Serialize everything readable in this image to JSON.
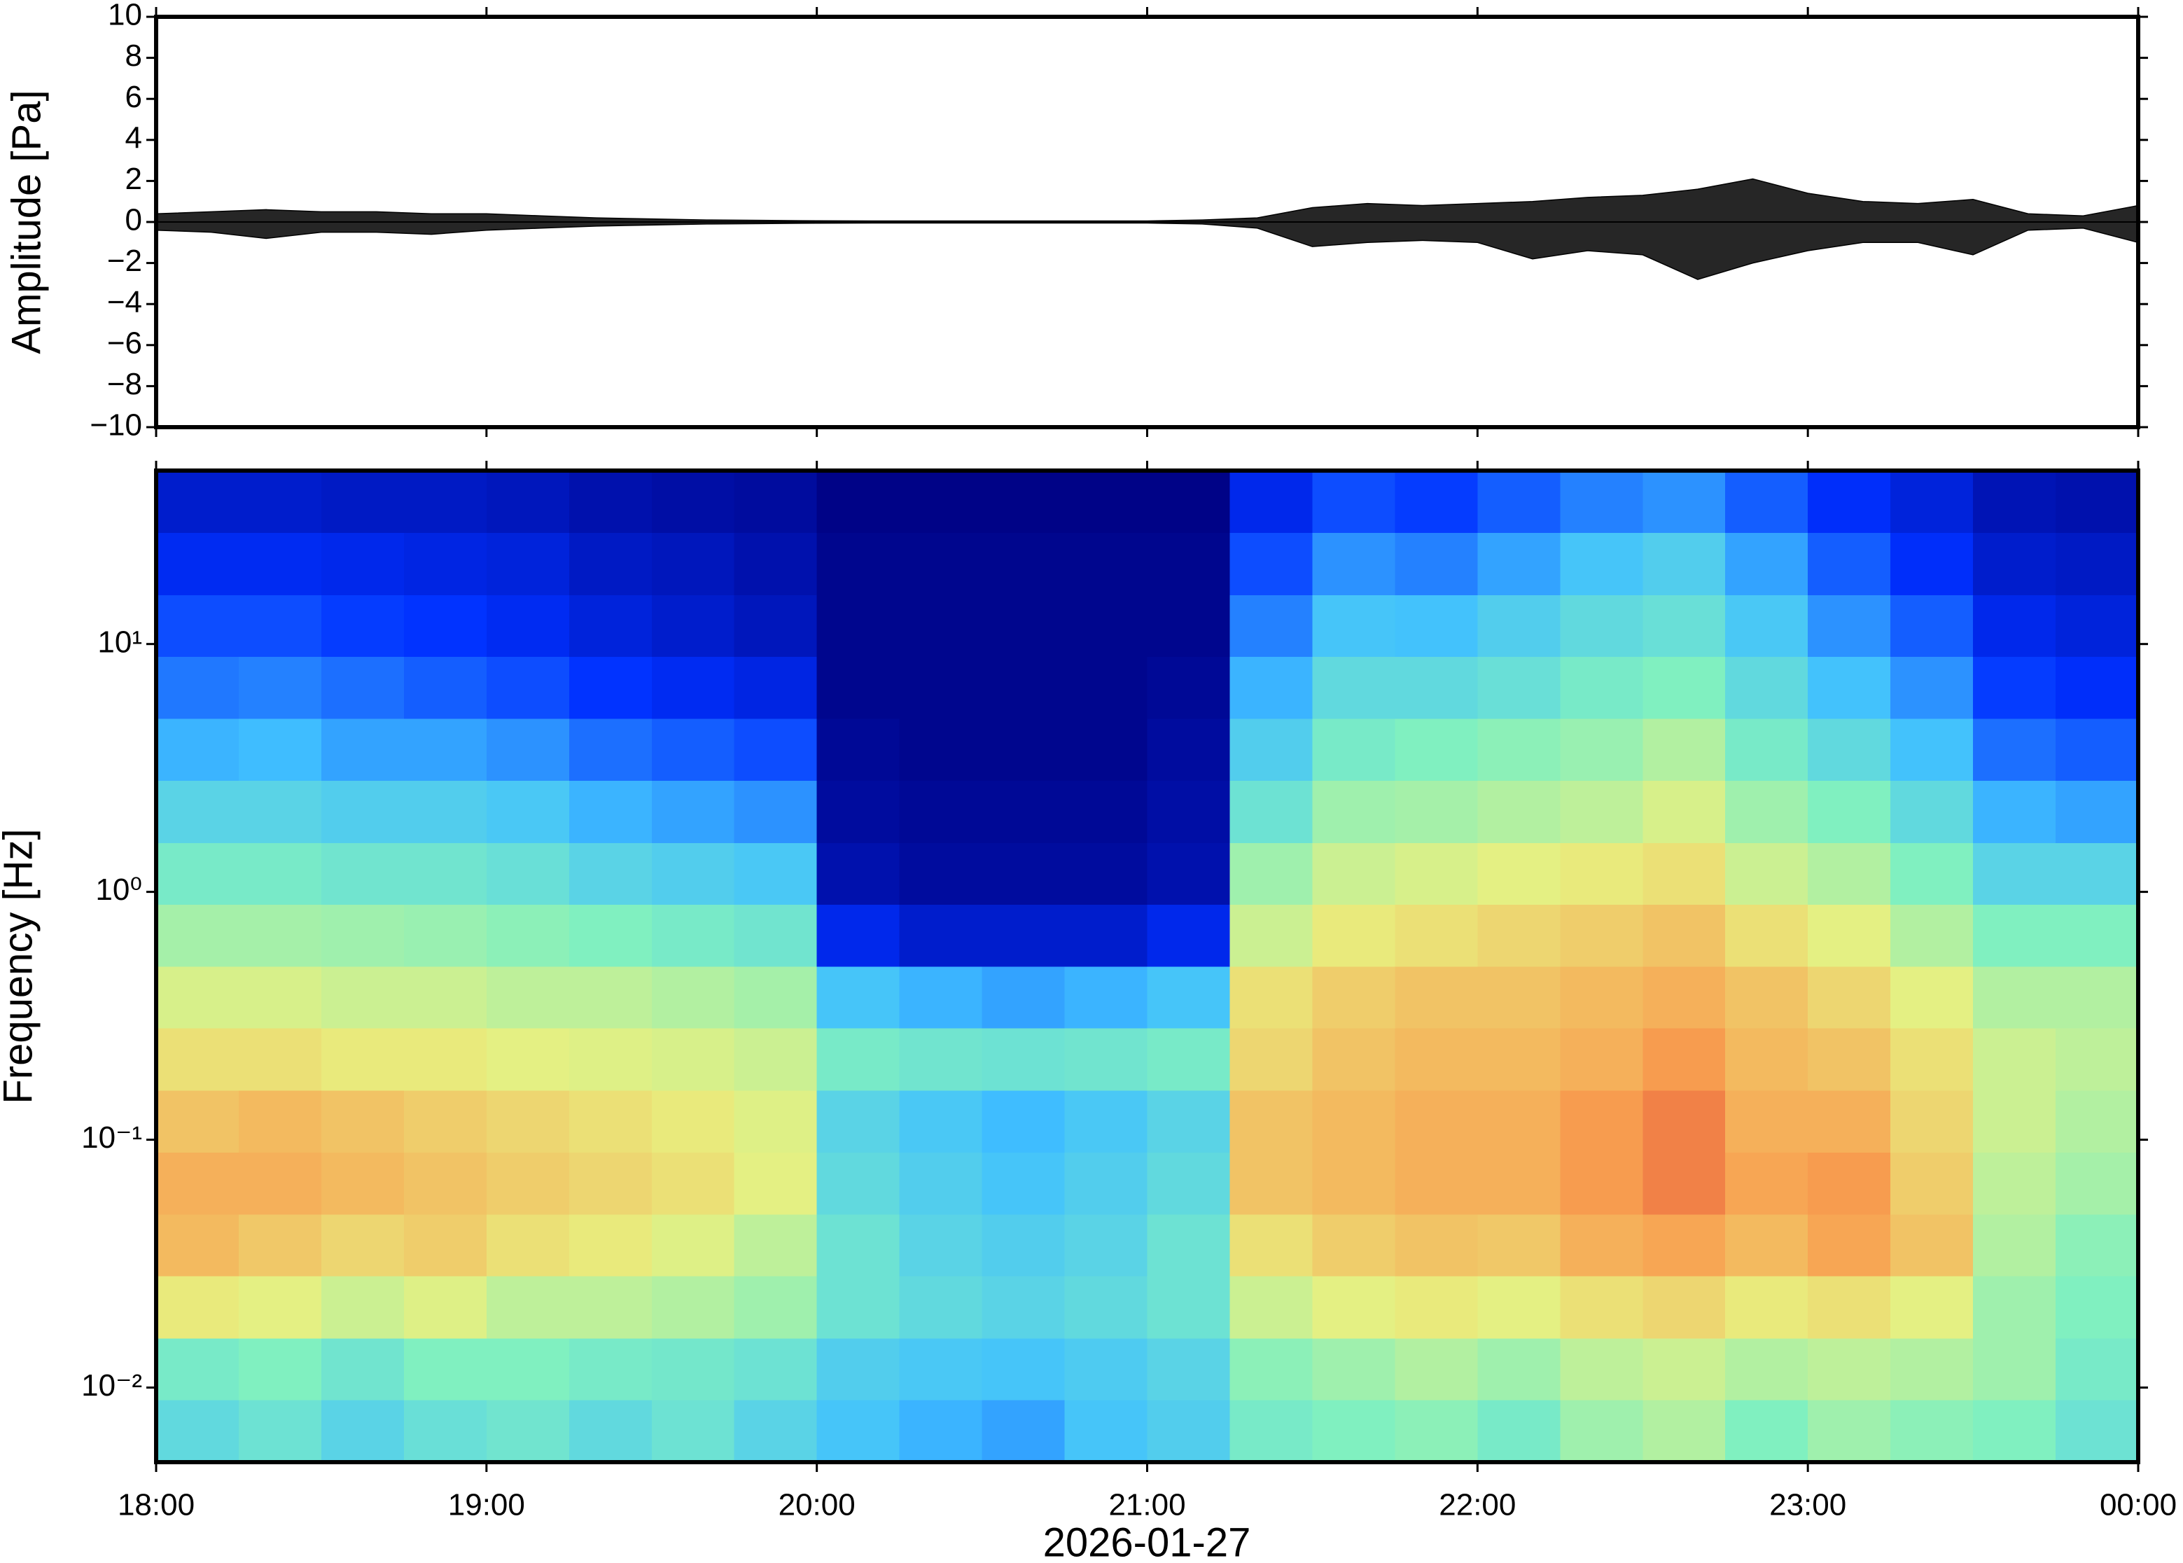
{
  "chart_data": [
    {
      "type": "waveform",
      "ylabel": "Amplitude [Pa]",
      "color": "#000000",
      "xlim": [
        0,
        360
      ],
      "ylim": [
        -10,
        10
      ],
      "yticks": [
        {
          "value": -10,
          "label": "−10"
        },
        {
          "value": -8,
          "label": "−8"
        },
        {
          "value": -6,
          "label": "−6"
        },
        {
          "value": -4,
          "label": "−4"
        },
        {
          "value": -2,
          "label": "−2"
        },
        0,
        2,
        4,
        6,
        8,
        10
      ],
      "x": [
        0,
        10,
        20,
        30,
        40,
        50,
        60,
        70,
        80,
        90,
        100,
        110,
        120,
        130,
        140,
        150,
        160,
        170,
        180,
        190,
        200,
        210,
        220,
        230,
        240,
        250,
        260,
        270,
        280,
        290,
        300,
        310,
        320,
        330,
        340,
        350,
        360
      ],
      "upper": [
        0.4,
        0.5,
        0.6,
        0.5,
        0.5,
        0.4,
        0.4,
        0.3,
        0.2,
        0.15,
        0.1,
        0.08,
        0.06,
        0.05,
        0.05,
        0.05,
        0.05,
        0.05,
        0.05,
        0.1,
        0.2,
        0.7,
        0.9,
        0.8,
        0.9,
        1.0,
        1.2,
        1.3,
        1.6,
        2.1,
        1.4,
        1.0,
        0.9,
        1.1,
        0.4,
        0.3,
        0.8
      ],
      "lower": [
        -0.4,
        -0.5,
        -0.8,
        -0.5,
        -0.5,
        -0.6,
        -0.4,
        -0.3,
        -0.2,
        -0.15,
        -0.1,
        -0.08,
        -0.06,
        -0.05,
        -0.05,
        -0.05,
        -0.05,
        -0.05,
        -0.05,
        -0.1,
        -0.3,
        -1.2,
        -1.0,
        -0.9,
        -1.0,
        -1.8,
        -1.4,
        -1.6,
        -2.8,
        -2.0,
        -1.4,
        -1.0,
        -1.0,
        -1.6,
        -0.4,
        -0.3,
        -1.0
      ]
    },
    {
      "type": "heatmap",
      "ylabel": "Frequency [Hz]",
      "xlabel": "2026-01-27",
      "log_y": true,
      "xlim": [
        0,
        360
      ],
      "ylim": [
        0.005,
        50.1
      ],
      "xticks": [
        {
          "value": 0,
          "label": "18:00"
        },
        {
          "value": 60,
          "label": "19:00"
        },
        {
          "value": 120,
          "label": "20:00"
        },
        {
          "value": 180,
          "label": "21:00"
        },
        {
          "value": 240,
          "label": "22:00"
        },
        {
          "value": 300,
          "label": "23:00"
        },
        {
          "value": 360,
          "label": "00:00"
        }
      ],
      "yticks": [
        {
          "value": 0.01,
          "label": "10⁻²"
        },
        {
          "value": 0.1,
          "label": "10⁻¹"
        },
        {
          "value": 1,
          "label": "10⁰"
        },
        {
          "value": 10,
          "label": "10¹"
        }
      ],
      "colormap": [
        "#00007f",
        "#0030ff",
        "#40c0ff",
        "#80f0c0",
        "#e8f080",
        "#f8a050",
        "#e03030"
      ],
      "x_edges": [
        0,
        15,
        30,
        45,
        60,
        75,
        90,
        105,
        120,
        135,
        150,
        165,
        180,
        195,
        210,
        225,
        240,
        255,
        270,
        285,
        300,
        315,
        330,
        345,
        360
      ],
      "y_edges": [
        0.005,
        0.00891,
        0.0158,
        0.0282,
        0.0501,
        0.0891,
        0.158,
        0.282,
        0.501,
        0.891,
        1.58,
        2.82,
        5.01,
        8.91,
        15.8,
        28.2,
        50.1
      ],
      "values": [
        [
          0.42,
          0.45,
          0.4,
          0.44,
          0.46,
          0.42,
          0.45,
          0.4,
          0.35,
          0.32,
          0.3,
          0.35,
          0.38,
          0.48,
          0.5,
          0.52,
          0.48,
          0.55,
          0.58,
          0.5,
          0.55,
          0.52,
          0.5,
          0.45
        ],
        [
          0.48,
          0.5,
          0.46,
          0.5,
          0.5,
          0.48,
          0.47,
          0.45,
          0.38,
          0.36,
          0.35,
          0.37,
          0.4,
          0.52,
          0.55,
          0.58,
          0.55,
          0.6,
          0.62,
          0.58,
          0.6,
          0.58,
          0.55,
          0.48
        ],
        [
          0.68,
          0.66,
          0.62,
          0.65,
          0.6,
          0.6,
          0.58,
          0.55,
          0.45,
          0.42,
          0.4,
          0.42,
          0.45,
          0.62,
          0.66,
          0.68,
          0.66,
          0.7,
          0.72,
          0.68,
          0.7,
          0.66,
          0.55,
          0.5
        ],
        [
          0.78,
          0.75,
          0.72,
          0.74,
          0.7,
          0.68,
          0.65,
          0.6,
          0.45,
          0.4,
          0.38,
          0.4,
          0.45,
          0.7,
          0.74,
          0.76,
          0.75,
          0.8,
          0.82,
          0.78,
          0.82,
          0.76,
          0.58,
          0.52
        ],
        [
          0.8,
          0.8,
          0.78,
          0.76,
          0.74,
          0.72,
          0.7,
          0.66,
          0.42,
          0.38,
          0.35,
          0.38,
          0.42,
          0.76,
          0.78,
          0.8,
          0.8,
          0.84,
          0.88,
          0.82,
          0.84,
          0.74,
          0.6,
          0.56
        ],
        [
          0.76,
          0.78,
          0.76,
          0.74,
          0.72,
          0.7,
          0.68,
          0.65,
          0.4,
          0.36,
          0.33,
          0.36,
          0.4,
          0.76,
          0.78,
          0.8,
          0.8,
          0.84,
          0.88,
          0.8,
          0.8,
          0.72,
          0.62,
          0.58
        ],
        [
          0.7,
          0.7,
          0.68,
          0.68,
          0.66,
          0.65,
          0.64,
          0.62,
          0.48,
          0.46,
          0.45,
          0.46,
          0.48,
          0.72,
          0.76,
          0.78,
          0.78,
          0.8,
          0.84,
          0.78,
          0.76,
          0.7,
          0.62,
          0.6
        ],
        [
          0.64,
          0.64,
          0.62,
          0.62,
          0.6,
          0.6,
          0.58,
          0.56,
          0.35,
          0.32,
          0.3,
          0.32,
          0.35,
          0.7,
          0.74,
          0.76,
          0.76,
          0.78,
          0.8,
          0.76,
          0.72,
          0.66,
          0.58,
          0.58
        ],
        [
          0.56,
          0.56,
          0.55,
          0.54,
          0.52,
          0.5,
          0.48,
          0.46,
          0.14,
          0.1,
          0.1,
          0.1,
          0.14,
          0.62,
          0.68,
          0.7,
          0.72,
          0.74,
          0.76,
          0.7,
          0.66,
          0.58,
          0.5,
          0.5
        ],
        [
          0.48,
          0.48,
          0.46,
          0.46,
          0.44,
          0.4,
          0.38,
          0.36,
          0.06,
          0.04,
          0.04,
          0.04,
          0.06,
          0.55,
          0.62,
          0.64,
          0.66,
          0.68,
          0.7,
          0.62,
          0.58,
          0.5,
          0.4,
          0.4
        ],
        [
          0.4,
          0.4,
          0.38,
          0.38,
          0.36,
          0.32,
          0.3,
          0.28,
          0.04,
          0.03,
          0.03,
          0.03,
          0.05,
          0.45,
          0.55,
          0.56,
          0.58,
          0.6,
          0.64,
          0.55,
          0.5,
          0.42,
          0.32,
          0.3
        ],
        [
          0.32,
          0.33,
          0.3,
          0.3,
          0.28,
          0.24,
          0.22,
          0.2,
          0.03,
          0.02,
          0.02,
          0.02,
          0.04,
          0.38,
          0.48,
          0.5,
          0.52,
          0.54,
          0.58,
          0.48,
          0.42,
          0.34,
          0.24,
          0.22
        ],
        [
          0.25,
          0.26,
          0.24,
          0.22,
          0.2,
          0.17,
          0.15,
          0.13,
          0.02,
          0.02,
          0.02,
          0.02,
          0.03,
          0.32,
          0.42,
          0.42,
          0.44,
          0.48,
          0.5,
          0.42,
          0.34,
          0.28,
          0.18,
          0.16
        ],
        [
          0.2,
          0.2,
          0.18,
          0.17,
          0.15,
          0.12,
          0.1,
          0.08,
          0.02,
          0.02,
          0.02,
          0.02,
          0.02,
          0.26,
          0.35,
          0.34,
          0.38,
          0.42,
          0.44,
          0.36,
          0.28,
          0.22,
          0.14,
          0.12
        ],
        [
          0.15,
          0.15,
          0.14,
          0.13,
          0.12,
          0.09,
          0.08,
          0.06,
          0.02,
          0.02,
          0.02,
          0.02,
          0.02,
          0.2,
          0.28,
          0.26,
          0.3,
          0.35,
          0.38,
          0.3,
          0.22,
          0.16,
          0.1,
          0.09
        ],
        [
          0.1,
          0.1,
          0.09,
          0.09,
          0.08,
          0.06,
          0.05,
          0.04,
          0.01,
          0.01,
          0.01,
          0.01,
          0.01,
          0.14,
          0.2,
          0.18,
          0.22,
          0.26,
          0.28,
          0.22,
          0.16,
          0.12,
          0.07,
          0.06
        ]
      ]
    }
  ]
}
